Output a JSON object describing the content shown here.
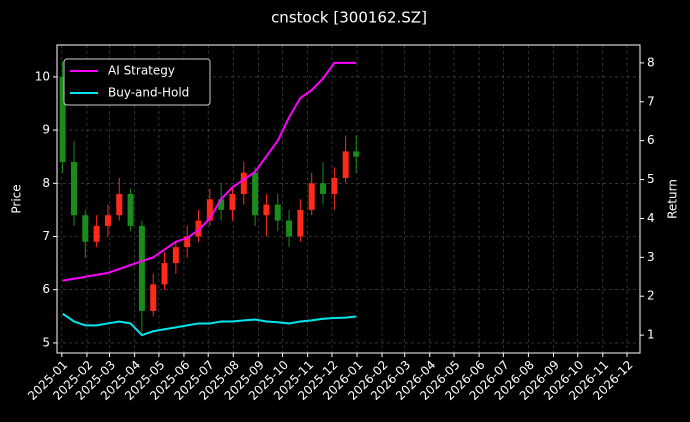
{
  "chart_data": {
    "type": "candlestick",
    "title": "cnstock [300162.SZ]",
    "ylabel": "Price",
    "y2label": "Return",
    "x": [
      "2025-01-02",
      "2025-01-16",
      "2025-01-30",
      "2025-02-13",
      "2025-02-27",
      "2025-03-13",
      "2025-03-27",
      "2025-04-10",
      "2025-04-24",
      "2025-05-08",
      "2025-05-22",
      "2025-06-05",
      "2025-06-19",
      "2025-07-03",
      "2025-07-17",
      "2025-07-31",
      "2025-08-14",
      "2025-08-28",
      "2025-09-11",
      "2025-09-25",
      "2025-10-09",
      "2025-10-23",
      "2025-11-06",
      "2025-11-20",
      "2025-12-04",
      "2025-12-18",
      "2025-12-31"
    ],
    "open": [
      10.0,
      8.4,
      7.4,
      6.9,
      7.2,
      7.4,
      7.8,
      7.2,
      5.6,
      6.1,
      6.5,
      6.8,
      7.0,
      7.3,
      7.7,
      7.5,
      7.8,
      8.2,
      7.4,
      7.6,
      7.3,
      7.0,
      7.5,
      8.0,
      7.8,
      8.1,
      8.6
    ],
    "high": [
      10.3,
      8.8,
      7.5,
      7.4,
      7.6,
      8.1,
      7.9,
      7.3,
      6.3,
      6.7,
      6.9,
      7.2,
      7.5,
      7.9,
      8.0,
      7.9,
      8.4,
      8.3,
      7.8,
      7.8,
      7.5,
      7.7,
      8.2,
      8.4,
      8.3,
      8.9,
      8.9
    ],
    "low": [
      8.2,
      7.2,
      6.6,
      6.8,
      7.0,
      7.3,
      7.1,
      5.2,
      5.5,
      6.0,
      6.3,
      6.6,
      6.9,
      7.2,
      7.3,
      7.3,
      7.6,
      7.2,
      7.0,
      7.1,
      6.8,
      6.9,
      7.4,
      7.6,
      7.5,
      8.0,
      8.2
    ],
    "close": [
      8.4,
      7.4,
      6.9,
      7.2,
      7.4,
      7.8,
      7.2,
      5.6,
      6.1,
      6.5,
      6.8,
      7.0,
      7.3,
      7.7,
      7.5,
      7.8,
      8.2,
      7.4,
      7.6,
      7.3,
      7.0,
      7.5,
      8.0,
      7.8,
      8.1,
      8.6,
      8.5
    ],
    "up_color": "#ff2a1a",
    "down_color": "#1a8c1a",
    "series": [
      {
        "name": "AI Strategy",
        "color": "#ff00ff",
        "axis": "y2",
        "values": [
          2.4,
          2.45,
          2.5,
          2.55,
          2.6,
          2.7,
          2.8,
          2.9,
          3.0,
          3.2,
          3.4,
          3.5,
          3.7,
          4.0,
          4.5,
          4.8,
          5.0,
          5.2,
          5.6,
          6.0,
          6.6,
          7.1,
          7.3,
          7.6,
          8.0,
          8.0,
          8.0
        ]
      },
      {
        "name": "Buy-and-Hold",
        "color": "#00e5ee",
        "axis": "y2",
        "values": [
          1.55,
          1.35,
          1.25,
          1.25,
          1.3,
          1.35,
          1.3,
          1.0,
          1.1,
          1.15,
          1.2,
          1.25,
          1.3,
          1.3,
          1.35,
          1.35,
          1.38,
          1.4,
          1.35,
          1.33,
          1.3,
          1.35,
          1.38,
          1.42,
          1.44,
          1.45,
          1.48
        ]
      }
    ],
    "xlim": [
      "2024-12-26",
      "2026-12-17"
    ],
    "xticks": [
      "2025-01",
      "2025-02",
      "2025-03",
      "2025-04",
      "2025-05",
      "2025-06",
      "2025-07",
      "2025-08",
      "2025-09",
      "2025-10",
      "2025-11",
      "2025-12",
      "2026-01",
      "2026-02",
      "2026-03",
      "2026-04",
      "2026-05",
      "2026-06",
      "2026-07",
      "2026-08",
      "2026-09",
      "2026-10",
      "2026-11",
      "2026-12"
    ],
    "ylim": [
      4.81,
      10.6
    ],
    "yticks": [
      5,
      6,
      7,
      8,
      9,
      10
    ],
    "y2lim": [
      0.54,
      8.46
    ],
    "y2ticks": [
      1,
      2,
      3,
      4,
      5,
      6,
      7,
      8
    ],
    "grid": true,
    "legend": "upper left"
  }
}
